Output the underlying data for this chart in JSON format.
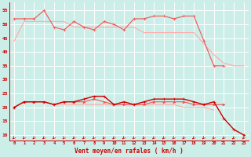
{
  "x": [
    0,
    1,
    2,
    3,
    4,
    5,
    6,
    7,
    8,
    9,
    10,
    11,
    12,
    13,
    14,
    15,
    16,
    17,
    18,
    19,
    20,
    21,
    22,
    23
  ],
  "line_top_dark": [
    52,
    52,
    52,
    55,
    49,
    48,
    51,
    49,
    48,
    51,
    50,
    48,
    52,
    52,
    53,
    53,
    52,
    53,
    53,
    44,
    35,
    35,
    null,
    null
  ],
  "line_top_light": [
    44,
    51,
    51,
    51,
    51,
    51,
    49,
    49,
    49,
    49,
    49,
    49,
    49,
    47,
    47,
    47,
    47,
    47,
    47,
    43,
    39,
    36,
    35,
    35
  ],
  "line_mid_dark": [
    20,
    22,
    22,
    22,
    21,
    22,
    22,
    23,
    24,
    24,
    21,
    22,
    21,
    22,
    23,
    23,
    23,
    23,
    22,
    21,
    22,
    16,
    12,
    10
  ],
  "line_mid_med": [
    20,
    22,
    22,
    22,
    21,
    22,
    22,
    22,
    23,
    22,
    21,
    21,
    21,
    21,
    22,
    22,
    22,
    22,
    21,
    21,
    21,
    21,
    null,
    null
  ],
  "line_mid_light": [
    20,
    22,
    22,
    22,
    21,
    21,
    21,
    21,
    21,
    21,
    21,
    21,
    21,
    21,
    21,
    21,
    21,
    20,
    20,
    20,
    19,
    null,
    null,
    null
  ],
  "xlabel": "Vent moyen/en rafales ( km/h )",
  "yticks": [
    10,
    15,
    20,
    25,
    30,
    35,
    40,
    45,
    50,
    55
  ],
  "ylim": [
    8,
    58
  ],
  "xlim": [
    -0.5,
    23.5
  ],
  "bg_color": "#cceee8",
  "grid_color": "#ffffff",
  "color_dark_red": "#cc0000",
  "color_med_red": "#ee5555",
  "color_light_red": "#ffaaaa",
  "arrow_color": "#cc0000"
}
